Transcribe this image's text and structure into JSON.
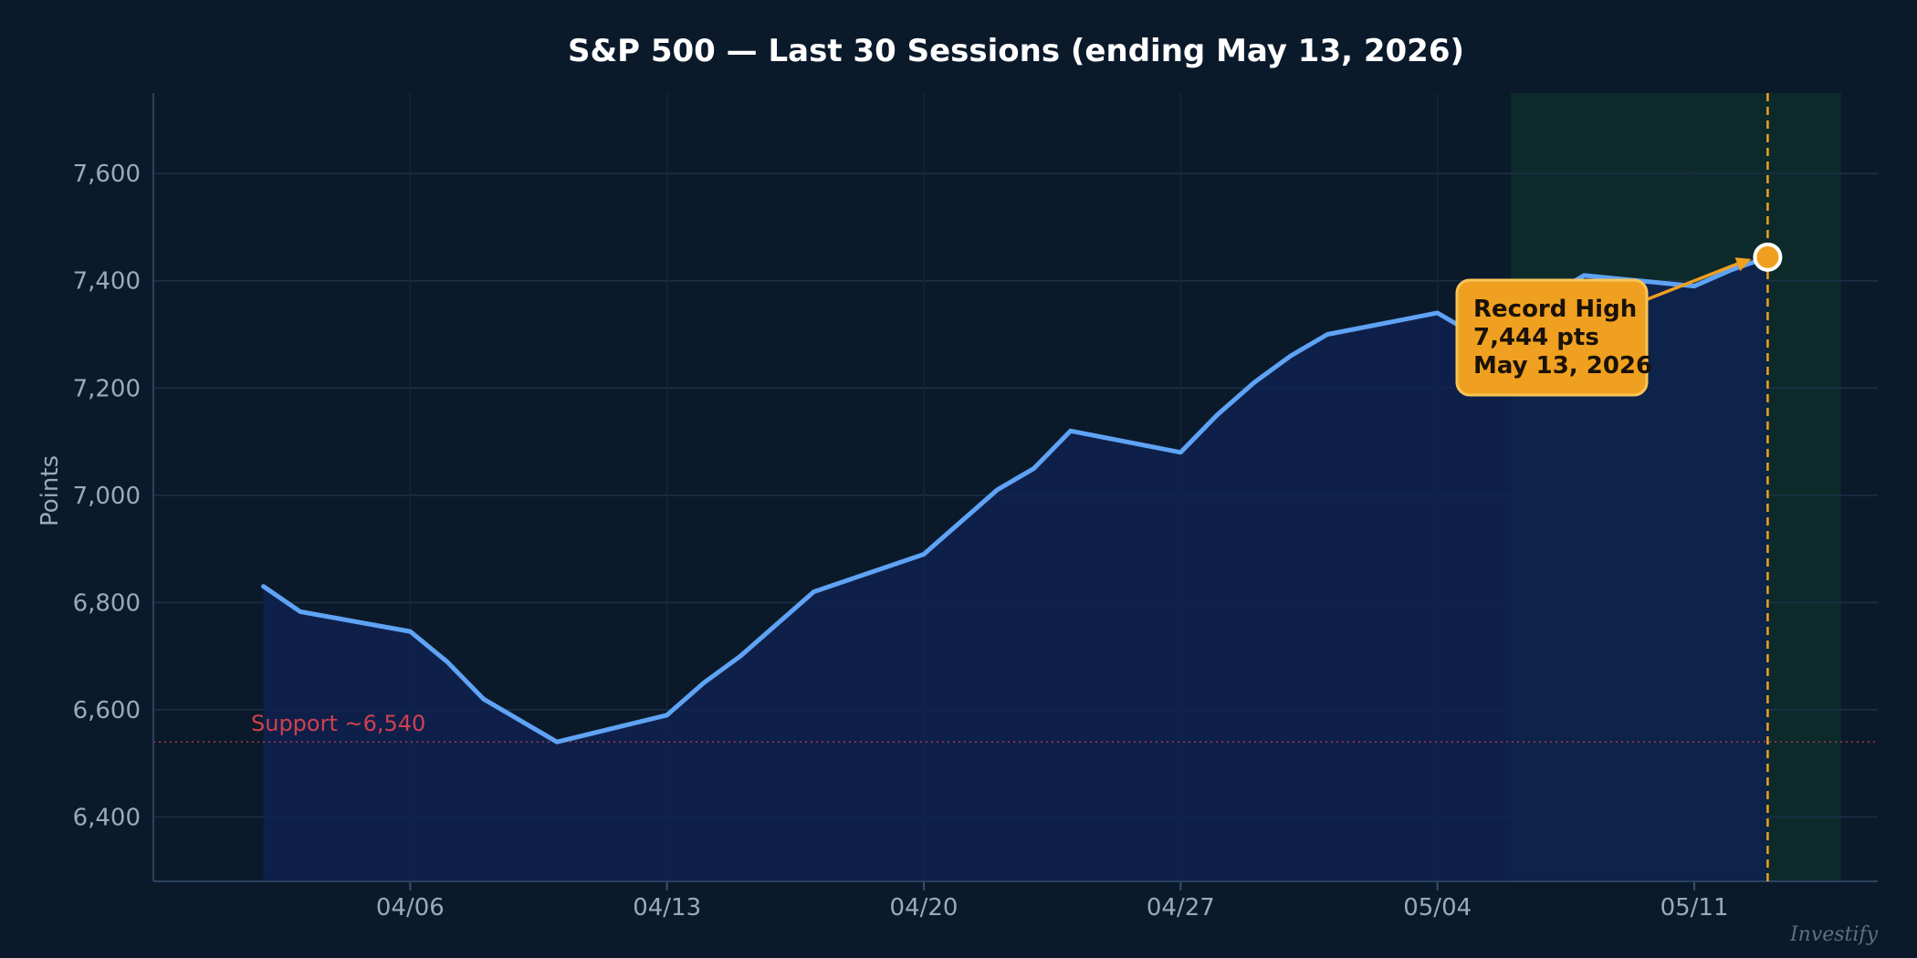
{
  "chart_data": {
    "type": "area",
    "title": "S&P 500 — Last 30 Sessions (ending May 13, 2026)",
    "xlabel": "",
    "ylabel": "Points",
    "ylim": [
      6280,
      7750
    ],
    "y_ticks": [
      6400,
      6600,
      6800,
      7000,
      7200,
      7400,
      7600
    ],
    "y_tick_labels": [
      "6,400",
      "6,600",
      "6,800",
      "7,000",
      "7,200",
      "7,400",
      "7,600"
    ],
    "x_range": [
      "2026-03-30",
      "2026-05-16"
    ],
    "x_ticks": [
      "2026-04-06",
      "2026-04-13",
      "2026-04-20",
      "2026-04-27",
      "2026-05-04",
      "2026-05-11"
    ],
    "x_tick_labels": [
      "04/06",
      "04/13",
      "04/20",
      "04/27",
      "05/04",
      "05/11"
    ],
    "grid": true,
    "series": [
      {
        "color": "#5fa3f5",
        "fill": "#0f2250",
        "points": [
          {
            "x": "2026-04-02",
            "y": 6830
          },
          {
            "x": "2026-04-03",
            "y": 6783
          },
          {
            "x": "2026-04-06",
            "y": 6746
          },
          {
            "x": "2026-04-07",
            "y": 6690
          },
          {
            "x": "2026-04-08",
            "y": 6620
          },
          {
            "x": "2026-04-10",
            "y": 6540
          },
          {
            "x": "2026-04-13",
            "y": 6590
          },
          {
            "x": "2026-04-14",
            "y": 6650
          },
          {
            "x": "2026-04-15",
            "y": 6700
          },
          {
            "x": "2026-04-17",
            "y": 6820
          },
          {
            "x": "2026-04-20",
            "y": 6890
          },
          {
            "x": "2026-04-22",
            "y": 7010
          },
          {
            "x": "2026-04-23",
            "y": 7050
          },
          {
            "x": "2026-04-24",
            "y": 7120
          },
          {
            "x": "2026-04-27",
            "y": 7080
          },
          {
            "x": "2026-04-28",
            "y": 7150
          },
          {
            "x": "2026-04-29",
            "y": 7210
          },
          {
            "x": "2026-04-30",
            "y": 7260
          },
          {
            "x": "2026-05-01",
            "y": 7300
          },
          {
            "x": "2026-05-04",
            "y": 7340
          },
          {
            "x": "2026-05-05",
            "y": 7300
          },
          {
            "x": "2026-05-07",
            "y": 7370
          },
          {
            "x": "2026-05-08",
            "y": 7410
          },
          {
            "x": "2026-05-11",
            "y": 7390
          },
          {
            "x": "2026-05-12",
            "y": 7420
          },
          {
            "x": "2026-05-13",
            "y": 7444
          }
        ]
      }
    ],
    "support": {
      "value": 6540,
      "label": "Support ~6,540",
      "color": "#d1404f"
    },
    "highlight_band": {
      "start": "2026-05-06",
      "end": "2026-05-15",
      "color": "#0f3a2a"
    },
    "marker": {
      "x": "2026-05-13",
      "y": 7444,
      "color": "#f0a020"
    },
    "annotation": {
      "lines": [
        "Record High",
        "7,444 pts",
        "May 13, 2026"
      ],
      "background": "#f0a020"
    },
    "watermark": "Investify"
  }
}
